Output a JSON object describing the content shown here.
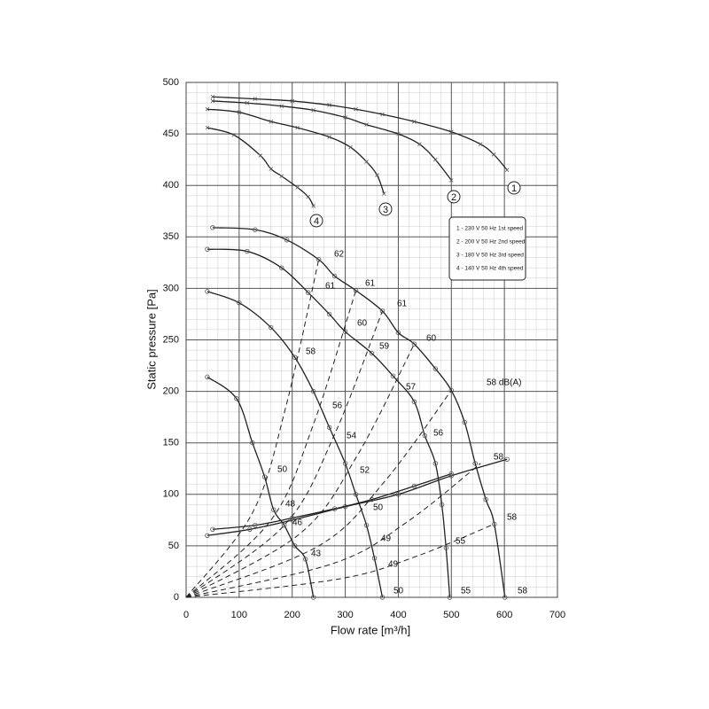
{
  "chart_data": {
    "type": "line",
    "xlabel": "Flow rate [m³/h]",
    "ylabel": "Static pressure [Pa]",
    "xlim": [
      0,
      700
    ],
    "xticks": [
      0,
      100,
      200,
      300,
      400,
      500,
      600,
      700
    ],
    "ylim": [
      0,
      500
    ],
    "yticks": [
      0,
      50,
      100,
      150,
      200,
      250,
      300,
      350,
      400,
      450,
      500
    ],
    "grid": true,
    "minor_grid": true,
    "legend": [
      "1 - 230 V 50 Hz 1st speed",
      "2 - 200 V 50 Hz 2nd speed",
      "3 - 180 V 50 Hz 3rd speed",
      "4 - 140 V 50 Hz 4th speed"
    ],
    "series": [
      {
        "name": "1",
        "color": "#222",
        "style": "solid",
        "marker": "x",
        "x": [
          50,
          130,
          200,
          270,
          320,
          370,
          430,
          500,
          555,
          580,
          605
        ],
        "values": [
          486,
          484,
          482,
          478,
          474,
          469,
          462,
          452,
          440,
          430,
          415
        ]
      },
      {
        "name": "2",
        "color": "#222",
        "style": "solid",
        "marker": "x",
        "x": [
          50,
          115,
          180,
          240,
          300,
          340,
          400,
          440,
          470,
          500
        ],
        "values": [
          482,
          480,
          477,
          473,
          466,
          459,
          450,
          440,
          425,
          405
        ]
      },
      {
        "name": "3",
        "color": "#222",
        "style": "solid",
        "marker": "x",
        "x": [
          40,
          100,
          160,
          210,
          270,
          310,
          340,
          360,
          373
        ],
        "values": [
          474,
          471,
          462,
          456,
          447,
          437,
          423,
          410,
          392
        ]
      },
      {
        "name": "4",
        "color": "#222",
        "style": "solid",
        "marker": "x",
        "x": [
          40,
          90,
          140,
          160,
          180,
          210,
          230,
          240
        ],
        "values": [
          456,
          449,
          429,
          416,
          409,
          398,
          389,
          380
        ]
      },
      {
        "color": "#222",
        "style": "solid",
        "marker": "o",
        "x": [
          50,
          130,
          190,
          250,
          280,
          320,
          370,
          400,
          430,
          470,
          500,
          525,
          545,
          565,
          581,
          601
        ],
        "values": [
          359,
          357,
          347,
          328,
          312,
          298,
          278,
          257,
          246,
          222,
          201,
          170,
          130,
          95,
          71,
          0
        ]
      },
      {
        "color": "#222",
        "style": "solid",
        "marker": "o",
        "x": [
          40,
          115,
          180,
          230,
          270,
          300,
          350,
          390,
          430,
          450,
          470,
          482,
          490,
          497
        ],
        "values": [
          338,
          336,
          320,
          296,
          275,
          258,
          237,
          215,
          190,
          157,
          130,
          90,
          48,
          0
        ]
      },
      {
        "color": "#222",
        "style": "solid",
        "marker": "o",
        "x": [
          40,
          100,
          160,
          205,
          240,
          270,
          300,
          320,
          340,
          355,
          370
        ],
        "values": [
          297,
          286,
          262,
          233,
          200,
          165,
          130,
          100,
          70,
          38,
          0
        ]
      },
      {
        "color": "#222",
        "style": "solid",
        "marker": "o",
        "x": [
          40,
          95,
          125,
          148,
          165,
          185,
          205,
          225,
          240
        ],
        "values": [
          214,
          193,
          150,
          117,
          85,
          70,
          50,
          37,
          0
        ]
      },
      {
        "color": "#222",
        "style": "solid",
        "marker": "o",
        "x": [
          40,
          120,
          200,
          300,
          400,
          500,
          605
        ],
        "values": [
          60,
          66,
          75,
          88,
          100,
          118,
          134
        ]
      },
      {
        "color": "#222",
        "style": "solid",
        "marker": "o",
        "x": [
          50,
          130,
          200,
          280,
          350,
          430,
          500
        ],
        "values": [
          66,
          70,
          77,
          86,
          95,
          108,
          120
        ]
      },
      {
        "color": "#222",
        "style": "dashed",
        "x": [
          0,
          125,
          188,
          250
        ],
        "values": [
          0,
          82,
          185,
          328
        ]
      },
      {
        "color": "#222",
        "style": "dashed",
        "x": [
          0,
          160,
          240,
          320
        ],
        "values": [
          0,
          75,
          168,
          298
        ]
      },
      {
        "color": "#222",
        "style": "dashed",
        "x": [
          0,
          185,
          278,
          370
        ],
        "values": [
          0,
          70,
          156,
          278
        ]
      },
      {
        "color": "#222",
        "style": "dashed",
        "x": [
          0,
          215,
          323,
          430
        ],
        "values": [
          0,
          62,
          138,
          246
        ]
      },
      {
        "color": "#222",
        "style": "dashed",
        "x": [
          0,
          250,
          375,
          500
        ],
        "values": [
          0,
          50,
          113,
          201
        ]
      },
      {
        "color": "#222",
        "style": "dashed",
        "x": [
          0,
          278,
          416,
          555
        ],
        "values": [
          0,
          33,
          73,
          130
        ]
      },
      {
        "color": "#222",
        "style": "dashed",
        "x": [
          0,
          290,
          435,
          580
        ],
        "values": [
          0,
          18,
          40,
          71
        ]
      }
    ],
    "annotations": [
      "62",
      "61",
      "61",
      "61",
      "60",
      "60",
      "59",
      "58",
      "58 dB(A)",
      "57",
      "56",
      "56",
      "54",
      "52",
      "50",
      "48",
      "46",
      "50",
      "58",
      "58",
      "55",
      "49",
      "49",
      "43",
      "50",
      "55",
      "58"
    ]
  }
}
